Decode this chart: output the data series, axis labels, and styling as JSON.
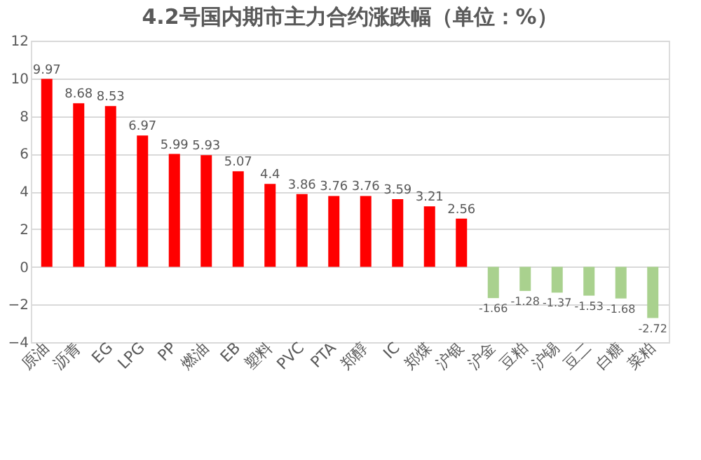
{
  "chart_data": {
    "type": "bar",
    "title": "4.2号国内期市主力合约涨跌幅（单位：%）",
    "categories": [
      "原油",
      "沥青",
      "EG",
      "LPG",
      "PP",
      "燃油",
      "EB",
      "塑料",
      "PVC",
      "PTA",
      "郑醇",
      "IC",
      "郑煤",
      "沪银",
      "沪金",
      "豆粕",
      "沪锡",
      "豆二",
      "白糖",
      "菜粕"
    ],
    "values": [
      9.97,
      8.68,
      8.53,
      6.97,
      5.99,
      5.93,
      5.07,
      4.4,
      3.86,
      3.76,
      3.76,
      3.59,
      3.21,
      2.56,
      -1.66,
      -1.28,
      -1.37,
      -1.53,
      -1.68,
      -2.72
    ],
    "colors": [
      "#ff0000",
      "#ff0000",
      "#ff0000",
      "#ff0000",
      "#ff0000",
      "#ff0000",
      "#ff0000",
      "#ff0000",
      "#ff0000",
      "#ff0000",
      "#ff0000",
      "#ff0000",
      "#ff0000",
      "#ff0000",
      "#a9d18e",
      "#a9d18e",
      "#a9d18e",
      "#a9d18e",
      "#a9d18e",
      "#a9d18e"
    ],
    "ylim": [
      -4,
      12
    ],
    "yticks": [
      -4,
      -2,
      0,
      2,
      4,
      6,
      8,
      10,
      12
    ],
    "grid": "y",
    "data_labels": true
  }
}
